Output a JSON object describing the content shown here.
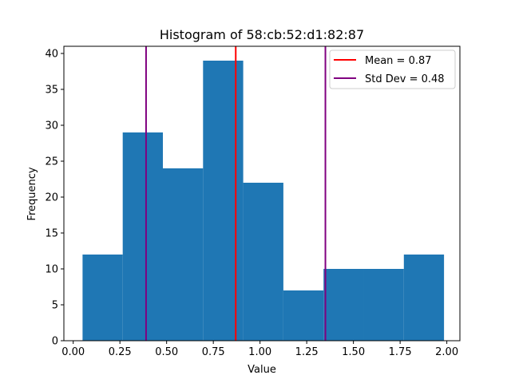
{
  "chart_data": {
    "type": "bar",
    "title": "Histogram of 58:cb:52:d1:82:87",
    "xlabel": "Value",
    "ylabel": "Frequency",
    "xlim": [
      -0.05,
      2.07
    ],
    "ylim": [
      0,
      41
    ],
    "xticks": [
      0.0,
      0.25,
      0.5,
      0.75,
      1.0,
      1.25,
      1.5,
      1.75,
      2.0
    ],
    "xtick_labels": [
      "0.00",
      "0.25",
      "0.50",
      "0.75",
      "1.00",
      "1.25",
      "1.50",
      "1.75",
      "2.00"
    ],
    "yticks": [
      0,
      5,
      10,
      15,
      20,
      25,
      30,
      35,
      40
    ],
    "ytick_labels": [
      "0",
      "5",
      "10",
      "15",
      "20",
      "25",
      "30",
      "35",
      "40"
    ],
    "bin_edges": [
      0.05,
      0.265,
      0.48,
      0.695,
      0.91,
      1.125,
      1.34,
      1.555,
      1.77,
      1.985
    ],
    "counts": [
      12,
      29,
      24,
      39,
      22,
      7,
      10,
      10,
      12
    ],
    "bar_color": "#1f77b4",
    "vlines": [
      {
        "x": 0.87,
        "color": "#ff0000",
        "legend": true
      },
      {
        "x": 0.39,
        "color": "#800080",
        "legend": true
      },
      {
        "x": 1.35,
        "color": "#800080",
        "legend": false
      }
    ],
    "legend": {
      "position": "top-right",
      "entries": [
        {
          "label": "Mean = 0.87",
          "color": "#ff0000"
        },
        {
          "label": "Std Dev = 0.48",
          "color": "#800080"
        }
      ]
    },
    "grid": false
  }
}
